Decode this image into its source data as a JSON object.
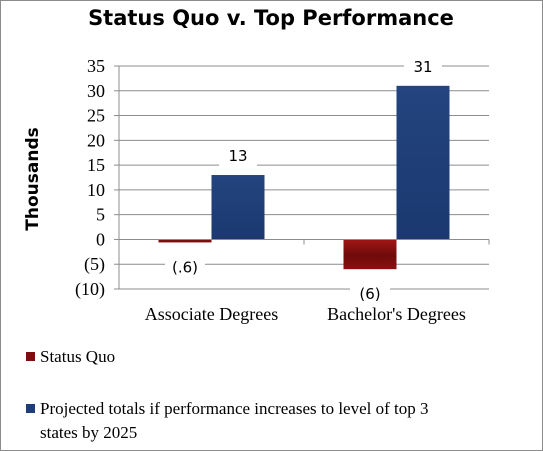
{
  "chart_data": {
    "type": "bar",
    "title": "Status Quo v. Top Performance",
    "ylabel": "Thousands",
    "xlabel": "",
    "categories": [
      "Associate Degrees",
      "Bachelor's Degrees"
    ],
    "ylim": [
      -10,
      35
    ],
    "yticks": [
      35,
      30,
      25,
      20,
      15,
      10,
      5,
      0,
      -5,
      -10
    ],
    "ytick_labels": [
      "35",
      "30",
      "25",
      "20",
      "15",
      "10",
      "5",
      "0",
      "(5)",
      "(10)"
    ],
    "grid": true,
    "legend_position": "bottom",
    "series": [
      {
        "name": "Status Quo",
        "color": "#7b0f0f",
        "values": [
          -0.6,
          -6
        ],
        "data_labels": [
          "(.6)",
          "(6)"
        ]
      },
      {
        "name": "Projected totals if performance increases to level of top 3 states by 2025",
        "legend_lines": [
          "Projected totals if performance increases to level of top 3",
          "states by 2025"
        ],
        "color": "#1f3d7a",
        "values": [
          13,
          31
        ],
        "data_labels": [
          "13",
          "31"
        ]
      }
    ]
  }
}
